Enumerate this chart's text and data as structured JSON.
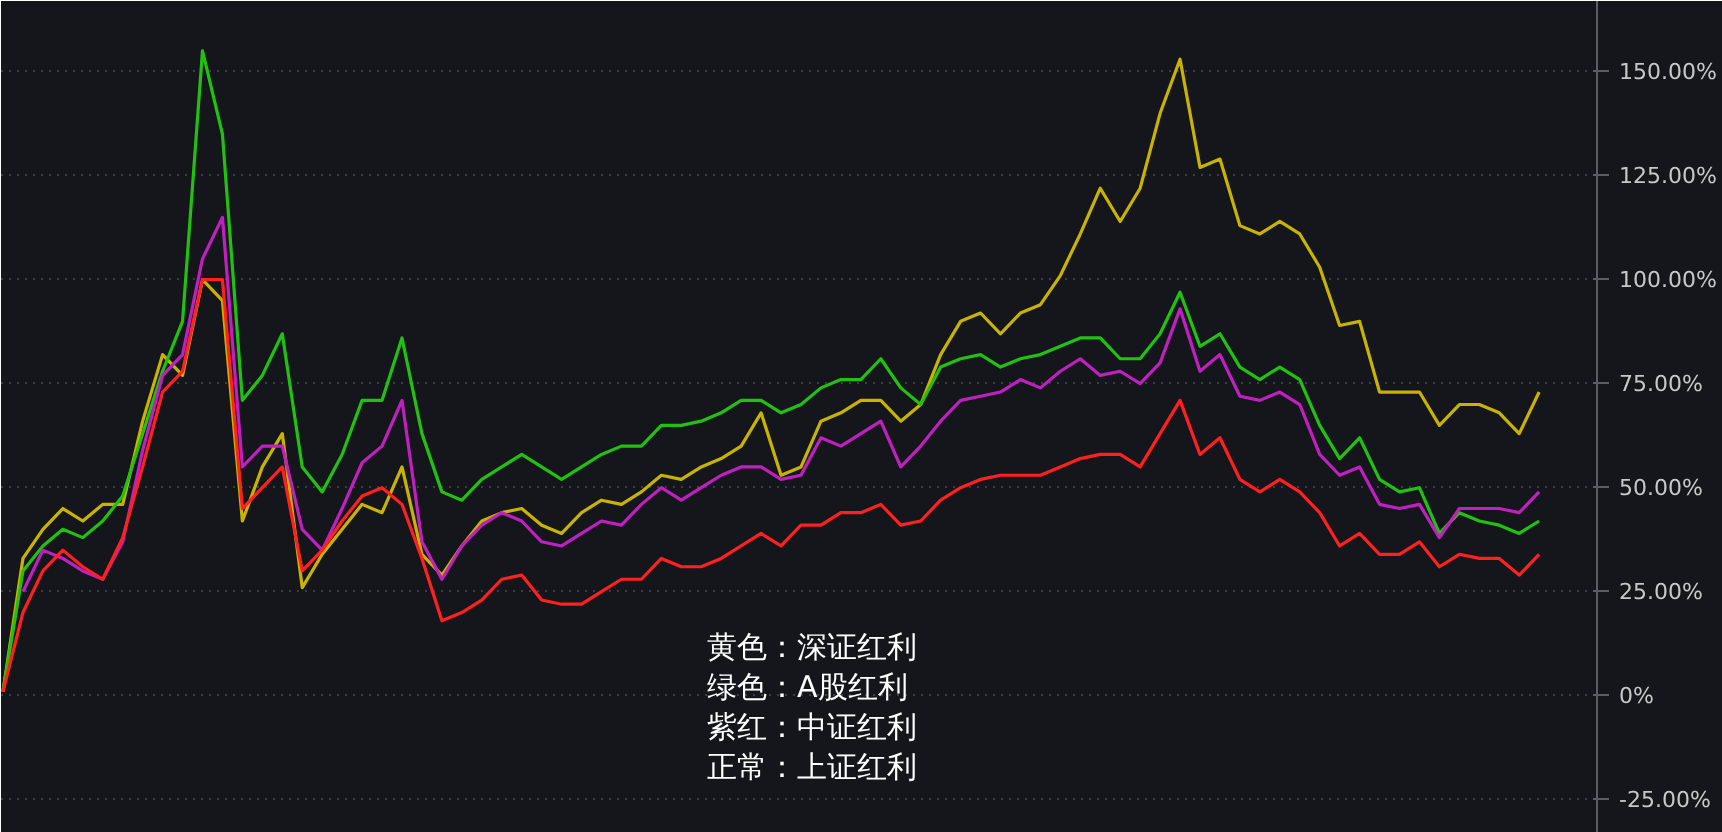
{
  "chart_data": {
    "type": "line",
    "categories": [
      null,
      null,
      null,
      null,
      null,
      null,
      null,
      null,
      null,
      null,
      null,
      null,
      null,
      null,
      null,
      null,
      null,
      null,
      null,
      null,
      null,
      null,
      null,
      null,
      null,
      null,
      null,
      null,
      null,
      null,
      null,
      null,
      null,
      null,
      null,
      null,
      null,
      null,
      null,
      null,
      null,
      null,
      null,
      null,
      null,
      null,
      null,
      null,
      null,
      null,
      null,
      null,
      null,
      null,
      null,
      null,
      null,
      null,
      null,
      null,
      null,
      null,
      null,
      null,
      null,
      null,
      null,
      null,
      null,
      null,
      null,
      null,
      null,
      null,
      null,
      null,
      null,
      null
    ],
    "series": [
      {
        "color": "#c8b400",
        "values": [
          1,
          33,
          40,
          45,
          42,
          46,
          46,
          66,
          82,
          77,
          100,
          95,
          42,
          55,
          63,
          26,
          34,
          40,
          46,
          44,
          55,
          34,
          29,
          36,
          42,
          44,
          45,
          41,
          39,
          44,
          47,
          46,
          49,
          53,
          52,
          55,
          57,
          60,
          68,
          53,
          55,
          66,
          68,
          71,
          71,
          66,
          70,
          82,
          90,
          92,
          87,
          92,
          94,
          101,
          111,
          122,
          114,
          122,
          140,
          153,
          127,
          129,
          113,
          111,
          114,
          111,
          103,
          89,
          90,
          73,
          73,
          73,
          65,
          70,
          70,
          68,
          63,
          73
        ]
      },
      {
        "color": "#22c010",
        "values": [
          1,
          30,
          36,
          40,
          38,
          42,
          48,
          63,
          78,
          90,
          155,
          135,
          71,
          77,
          87,
          55,
          49,
          58,
          71,
          71,
          86,
          63,
          49,
          47,
          52,
          55,
          58,
          55,
          52,
          55,
          58,
          60,
          60,
          65,
          65,
          66,
          68,
          71,
          71,
          68,
          70,
          74,
          76,
          76,
          81,
          74,
          70,
          79,
          81,
          82,
          79,
          81,
          82,
          84,
          86,
          86,
          81,
          81,
          87,
          97,
          84,
          87,
          79,
          76,
          79,
          76,
          65,
          57,
          62,
          52,
          49,
          50,
          39,
          44,
          42,
          41,
          39,
          42
        ]
      },
      {
        "color": "#c020c0",
        "values": [
          null,
          25,
          35,
          33,
          30,
          28,
          37,
          59,
          77,
          82,
          105,
          115,
          55,
          60,
          60,
          40,
          35,
          45,
          56,
          60,
          71,
          37,
          28,
          36,
          41,
          44,
          42,
          37,
          36,
          39,
          42,
          41,
          46,
          50,
          47,
          50,
          53,
          55,
          55,
          52,
          53,
          62,
          60,
          63,
          66,
          55,
          60,
          66,
          71,
          72,
          73,
          76,
          74,
          78,
          81,
          77,
          78,
          75,
          80,
          93,
          78,
          82,
          72,
          71,
          73,
          70,
          58,
          53,
          55,
          46,
          45,
          46,
          38,
          45,
          45,
          45,
          44,
          49
        ]
      },
      {
        "color": "#ff2020",
        "values": [
          1,
          20,
          30,
          35,
          31,
          28,
          38,
          55,
          73,
          78,
          100,
          100,
          45,
          50,
          55,
          30,
          35,
          42,
          48,
          50,
          46,
          33,
          18,
          20,
          23,
          28,
          29,
          23,
          22,
          22,
          25,
          28,
          28,
          33,
          31,
          31,
          33,
          36,
          39,
          36,
          41,
          41,
          44,
          44,
          46,
          41,
          42,
          47,
          50,
          52,
          53,
          53,
          53,
          55,
          57,
          58,
          58,
          55,
          63,
          71,
          58,
          62,
          52,
          49,
          52,
          49,
          44,
          36,
          39,
          34,
          34,
          37,
          31,
          34,
          33,
          33,
          29,
          34
        ]
      }
    ],
    "ylim": [
      -33,
      167
    ],
    "yticks": [
      {
        "value": -25,
        "label": "-25.00%"
      },
      {
        "value": 0,
        "label": "0%"
      },
      {
        "value": 25,
        "label": "25.00%"
      },
      {
        "value": 50,
        "label": "50.00%"
      },
      {
        "value": 75,
        "label": "75.00%"
      },
      {
        "value": 100,
        "label": "100.00%"
      },
      {
        "value": 125,
        "label": "125.00%"
      },
      {
        "value": 150,
        "label": "150.00%"
      }
    ],
    "grid": "y",
    "line_style": "solid",
    "annotations": [
      "黄色：深证红利",
      "绿色：A股红利",
      "紫红：中证红利",
      "正常：上证红利"
    ]
  }
}
